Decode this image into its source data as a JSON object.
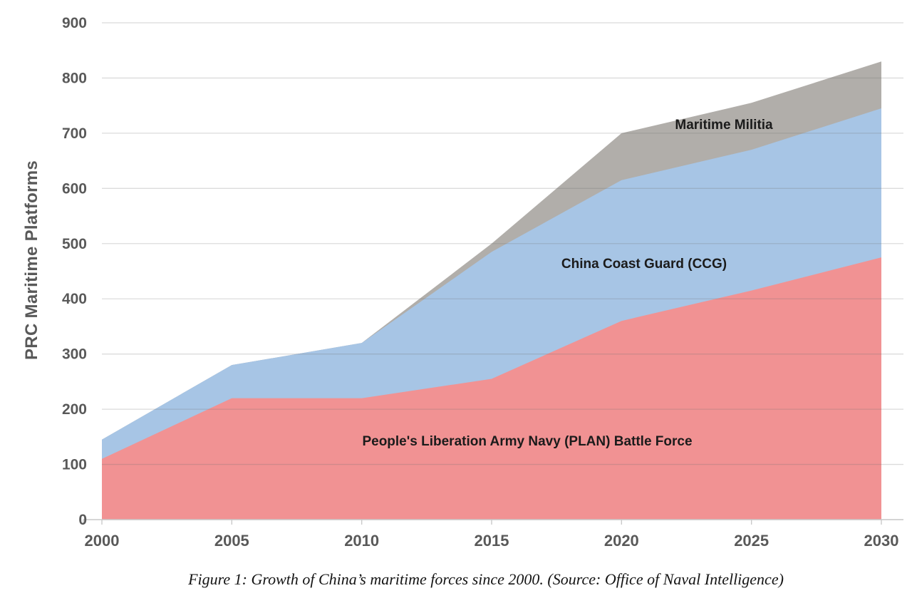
{
  "figure": {
    "caption": "Figure 1: Growth of China’s maritime forces since 2000. (Source: Office of Naval Intelligence)"
  },
  "chart_data": {
    "type": "area",
    "stacked": true,
    "title": "",
    "xlabel": "",
    "ylabel": "PRC Maritime Platforms",
    "xlim": [
      2000,
      2030
    ],
    "ylim": [
      0,
      900
    ],
    "grid": true,
    "legend": "inline-area-labels",
    "x": [
      2000,
      2005,
      2010,
      2015,
      2020,
      2025,
      2030
    ],
    "xtick_labels": [
      "2000",
      "2005",
      "2010",
      "2015",
      "2020",
      "2025",
      "2030"
    ],
    "yticks": [
      0,
      100,
      200,
      300,
      400,
      500,
      600,
      700,
      800,
      900
    ],
    "series": [
      {
        "name": "People's Liberation Army Navy (PLAN) Battle Force",
        "color": "#F19293",
        "values": [
          110,
          220,
          220,
          255,
          360,
          415,
          475
        ]
      },
      {
        "name": "China Coast Guard (CCG)",
        "color": "#A7C5E5",
        "values": [
          35,
          60,
          100,
          230,
          255,
          255,
          270
        ]
      },
      {
        "name": "Maritime Militia",
        "color": "#B1AEAA",
        "values": [
          0,
          0,
          0,
          15,
          85,
          85,
          85
        ]
      }
    ],
    "totals": [
      145,
      280,
      320,
      500,
      700,
      755,
      830
    ]
  }
}
